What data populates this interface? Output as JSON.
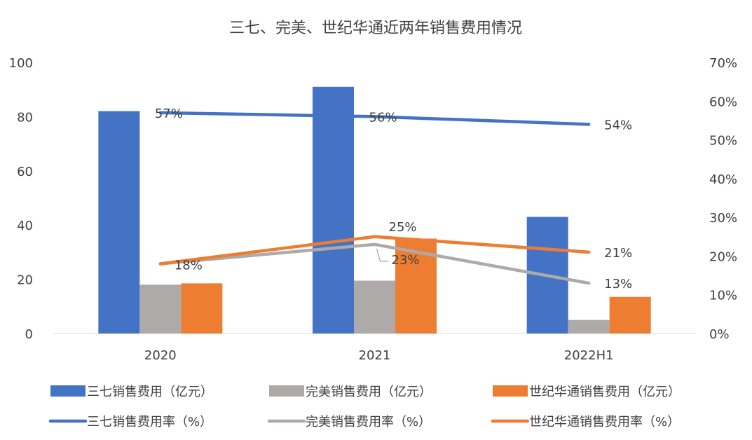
{
  "chart_data": {
    "type": "bar",
    "title": "三七、完美、世纪华通近两年销售费用情况",
    "categories": [
      "2020",
      "2021",
      "2022H1"
    ],
    "y_left": {
      "ylim": [
        0,
        100
      ],
      "ticks": [
        "100",
        "80",
        "60",
        "40",
        "20",
        "0"
      ],
      "unit": "亿元"
    },
    "y_right": {
      "ylim": [
        0,
        70
      ],
      "ticks": [
        "70%",
        "60%",
        "50%",
        "40%",
        "30%",
        "20%",
        "10%",
        "0%"
      ],
      "unit": "%"
    },
    "bar_series": [
      {
        "name": "三七销售费用（亿元）",
        "color": "#4472C4",
        "values": [
          82,
          91,
          43
        ]
      },
      {
        "name": "完美销售费用（亿元）",
        "color": "#AEAAAA",
        "values": [
          18,
          19.5,
          5
        ]
      },
      {
        "name": "世纪华通销售费用（亿元）",
        "color": "#ED7D31",
        "values": [
          18.5,
          35,
          13.5
        ]
      }
    ],
    "line_series": [
      {
        "name": "三七销售费用率（%）",
        "color": "#4472C4",
        "values": [
          57,
          56,
          54
        ],
        "labels": [
          "57%",
          "56%",
          "54%"
        ]
      },
      {
        "name": "完美销售费用率（%）",
        "color": "#AEAAAA",
        "values": [
          18,
          23,
          13
        ],
        "labels": [
          "",
          "23%",
          "13%"
        ]
      },
      {
        "name": "世纪华通销售费用率（%）",
        "color": "#ED7D31",
        "values": [
          18,
          25,
          21
        ],
        "labels": [
          "18%",
          "25%",
          "21%"
        ]
      }
    ],
    "grid": false,
    "legend": "bottom"
  }
}
